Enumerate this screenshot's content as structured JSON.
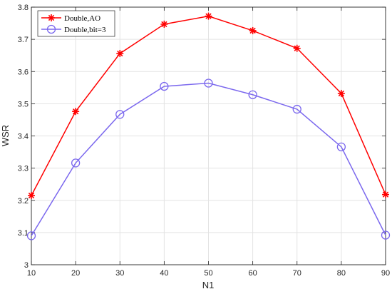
{
  "chart_data": {
    "type": "line",
    "xlabel": "N1",
    "ylabel": "WSR",
    "xlim": [
      10,
      90
    ],
    "ylim": [
      3.0,
      3.8
    ],
    "x": [
      10,
      20,
      30,
      40,
      50,
      60,
      70,
      80,
      90
    ],
    "xticks": [
      "10",
      "20",
      "30",
      "40",
      "50",
      "60",
      "70",
      "80",
      "90"
    ],
    "yticks": [
      "3",
      "3.1",
      "3.2",
      "3.3",
      "3.4",
      "3.5",
      "3.6",
      "3.7",
      "3.8"
    ],
    "grid": true,
    "legend_position": "top-left",
    "series": [
      {
        "name": "Double,AO",
        "color": "#ff0000",
        "marker": "asterisk",
        "values": [
          3.215,
          3.476,
          3.656,
          3.747,
          3.772,
          3.727,
          3.672,
          3.532,
          3.218
        ]
      },
      {
        "name": "Double,bit=3",
        "color": "#7b68ee",
        "marker": "circle",
        "values": [
          3.09,
          3.316,
          3.467,
          3.554,
          3.564,
          3.528,
          3.483,
          3.366,
          3.092
        ]
      }
    ]
  }
}
